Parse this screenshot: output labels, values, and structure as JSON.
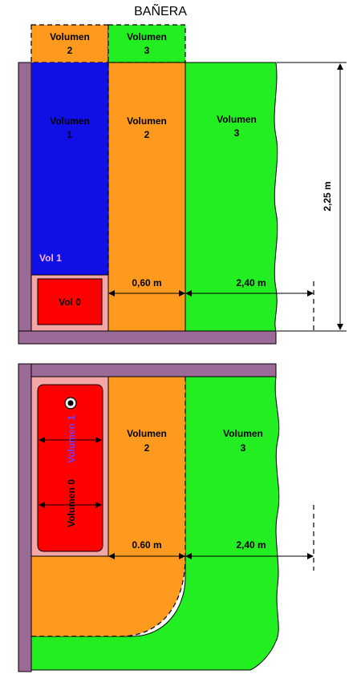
{
  "title": "BAÑERA",
  "colors": {
    "volume0": "#ff0000",
    "volume1": "#1010e6",
    "volume2": "#ff9a1f",
    "volume3": "#22ee22",
    "wall": "#9b6a96",
    "bath_rim": "#f4a6a6",
    "text_vol1": "#ffb6e6"
  },
  "elevation": {
    "vol2_top": [
      "Volumen",
      "2"
    ],
    "vol3_top": [
      "Volumen",
      "3"
    ],
    "vol1": [
      "Volumen",
      "1"
    ],
    "vol2": [
      "Volumen",
      "2"
    ],
    "vol3": [
      "Volumen",
      "3"
    ],
    "vol1_short": "Vol 1",
    "vol0_short": "Vol 0",
    "dim_060": "0,60 m",
    "dim_240": "2,40 m",
    "dim_225": "2,25 m"
  },
  "plan": {
    "vol0_vertical": "Volumen 0",
    "vol1_vertical": "Volumen 1",
    "vol2": [
      "Volumen",
      "2"
    ],
    "vol3": [
      "Volumen",
      "3"
    ],
    "dim_060": "0.60 m",
    "dim_240": "2,40 m"
  }
}
